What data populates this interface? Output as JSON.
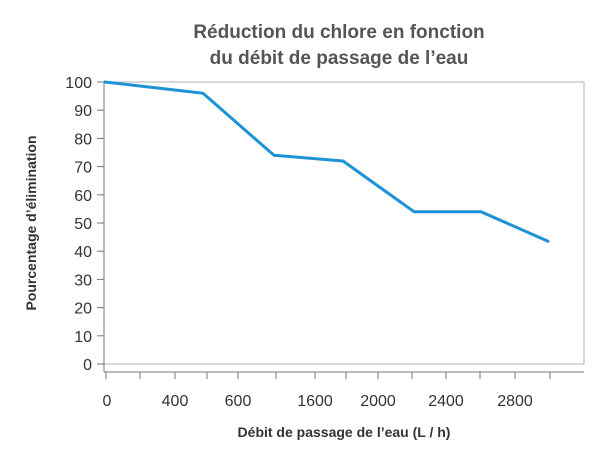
{
  "chart_data": {
    "type": "line",
    "title_lines": [
      "Réduction du chlore en fonction",
      "du débit de passage de l’eau"
    ],
    "xlabel": "Débit de passage de l’eau (L / h)",
    "ylabel": "Pourcentage d’élimination",
    "x_tick_labels": [
      "0",
      "400",
      "600",
      "1600",
      "2000",
      "2400",
      "2800"
    ],
    "y_ticks": [
      0,
      10,
      20,
      30,
      40,
      50,
      60,
      70,
      80,
      90,
      100
    ],
    "ylim": [
      0,
      100
    ],
    "grid": false,
    "line_color": "#1c93d4",
    "series": [
      {
        "points": [
          {
            "x": "0",
            "y": 100
          },
          {
            "x": "400",
            "y": 96
          },
          {
            "x": "600",
            "y": 74
          },
          {
            "x": "1600",
            "y": 72
          },
          {
            "x": "2000",
            "y": 54
          },
          {
            "x": "2400",
            "y": 54
          },
          {
            "x": "2800",
            "y": 43.5
          }
        ]
      }
    ]
  }
}
